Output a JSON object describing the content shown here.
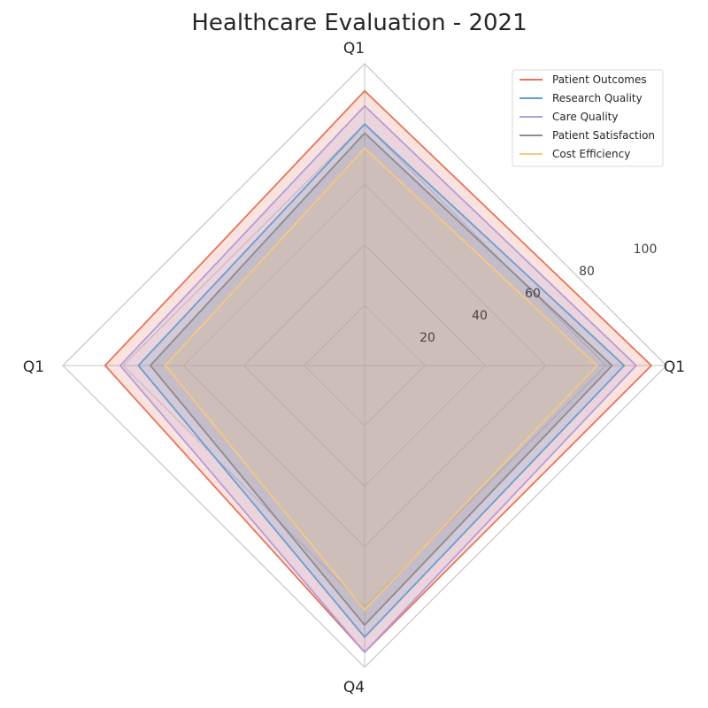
{
  "chart_data": {
    "type": "radar",
    "title": "Healthcare Evaluation - 2021",
    "axes": [
      "Q1",
      "Q1",
      "Q4",
      "Q1"
    ],
    "rticks": [
      20,
      40,
      60,
      80,
      100
    ],
    "rlim": [
      0,
      100
    ],
    "grid": true,
    "legend_position": "top-right",
    "series": [
      {
        "name": "Patient Outcomes",
        "color": "#e8735a",
        "values": [
          91,
          86,
          95,
          95
        ]
      },
      {
        "name": "Research Quality",
        "color": "#5a9ec9",
        "values": [
          80,
          75,
          90,
          86
        ]
      },
      {
        "name": "Care Quality",
        "color": "#b39ddb",
        "values": [
          86,
          81,
          95,
          90
        ]
      },
      {
        "name": "Patient Satisfaction",
        "color": "#8c8c8c",
        "values": [
          77,
          71,
          86,
          82
        ]
      },
      {
        "name": "Cost Efficiency",
        "color": "#f7c97e",
        "values": [
          72,
          66,
          81,
          77
        ]
      }
    ]
  }
}
